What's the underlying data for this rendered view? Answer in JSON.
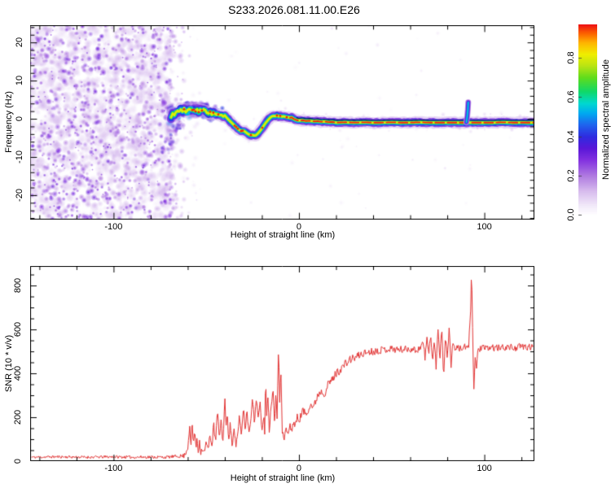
{
  "title": "S233.2026.081.11.00.E26",
  "colors": {
    "background": "#ffffff",
    "axis": "#000000",
    "snr_line": "#e23333",
    "ridge_overlay_line": "#0a0a3c"
  },
  "chart_data": [
    {
      "type": "heatmap",
      "title": "S233.2026.081.11.00.E26",
      "xlabel": "Height of straight line (km)",
      "ylabel": "Frequency (Hz)",
      "xlim": [
        -145,
        127
      ],
      "ylim": [
        -26.4,
        24.5
      ],
      "x_major_ticks": [
        -100,
        0,
        100
      ],
      "x_tick_labels": [
        "-100",
        "0",
        "100"
      ],
      "x_minor_step": 20,
      "y_major_ticks": [
        20,
        10,
        0,
        -10,
        -20
      ],
      "y_tick_labels": [
        "20",
        "10",
        "0",
        "-10",
        "-20"
      ],
      "y_minor_step": 2,
      "grid": false,
      "colorbar": {
        "label": "Normalized spectral amplitude",
        "tick_values": [
          0,
          0.2,
          0.4,
          0.6,
          0.8
        ],
        "tick_labels": [
          "0.0",
          "0.2",
          "0.4",
          "0.6",
          "0.8"
        ],
        "range": [
          0,
          0.975
        ],
        "stops": [
          [
            0.0,
            "#ffffff"
          ],
          [
            0.05,
            "#f1e8f9"
          ],
          [
            0.12,
            "#d8bdee"
          ],
          [
            0.2,
            "#b07ae0"
          ],
          [
            0.28,
            "#8332e0"
          ],
          [
            0.34,
            "#5a17d8"
          ],
          [
            0.4,
            "#2f2be0"
          ],
          [
            0.46,
            "#1f63ee"
          ],
          [
            0.52,
            "#00aaf0"
          ],
          [
            0.57,
            "#00d8d0"
          ],
          [
            0.63,
            "#10d868"
          ],
          [
            0.7,
            "#5fdc1c"
          ],
          [
            0.76,
            "#b8e414"
          ],
          [
            0.82,
            "#f0ee00"
          ],
          [
            0.88,
            "#ffb300"
          ],
          [
            0.93,
            "#fb5c00"
          ],
          [
            0.97,
            "#ef1414"
          ],
          [
            1.0,
            "#e00045"
          ]
        ]
      },
      "noise_region": {
        "x_start_km": -145,
        "x_end_km": -70,
        "sparse_tail_end_km": -51,
        "amplitude_range": [
          0.03,
          0.32
        ],
        "seed": 7,
        "blob_count_base": 1600,
        "blob_count_dark": 760,
        "tail_count": 160,
        "scatter_count": 55
      },
      "ridge_peak_amplitude": 0.96,
      "ridge_trace_km_hz": [
        [
          -69,
          0.3
        ],
        [
          -68,
          1.6
        ],
        [
          -67,
          0.8
        ],
        [
          -66,
          2.3
        ],
        [
          -65,
          1.5
        ],
        [
          -64,
          2.6
        ],
        [
          -63,
          1.8
        ],
        [
          -62,
          2.5
        ],
        [
          -61,
          1.6
        ],
        [
          -60,
          2.2
        ],
        [
          -59,
          2.8
        ],
        [
          -58,
          2.0
        ],
        [
          -57,
          2.6
        ],
        [
          -56,
          1.8
        ],
        [
          -55,
          2.4
        ],
        [
          -54,
          1.7
        ],
        [
          -53,
          2.5
        ],
        [
          -52,
          2.0
        ],
        [
          -51,
          2.6
        ],
        [
          -50,
          1.8
        ],
        [
          -49,
          1.2
        ],
        [
          -48,
          1.9
        ],
        [
          -47,
          1.1
        ],
        [
          -46,
          1.7
        ],
        [
          -45,
          1.0
        ],
        [
          -44,
          1.5
        ],
        [
          -43,
          0.8
        ],
        [
          -42,
          1.2
        ],
        [
          -41,
          0.5
        ],
        [
          -40,
          0.9
        ],
        [
          -39,
          0.3
        ],
        [
          -38,
          -0.2
        ],
        [
          -37,
          -0.7
        ],
        [
          -36,
          -1.2
        ],
        [
          -35,
          -1.7
        ],
        [
          -34,
          -2.1
        ],
        [
          -33,
          -2.6
        ],
        [
          -32,
          -3.0
        ],
        [
          -31,
          -3.3
        ],
        [
          -30,
          -3.0
        ],
        [
          -29,
          -3.4
        ],
        [
          -28,
          -3.8
        ],
        [
          -27,
          -4.1
        ],
        [
          -26,
          -4.3
        ],
        [
          -25,
          -4.2
        ],
        [
          -24,
          -4.4
        ],
        [
          -23,
          -4.3
        ],
        [
          -22,
          -3.8
        ],
        [
          -21,
          -3.2
        ],
        [
          -20,
          -2.5
        ],
        [
          -19,
          -1.8
        ],
        [
          -18,
          -1.1
        ],
        [
          -17,
          -0.5
        ],
        [
          -16,
          0.1
        ],
        [
          -15,
          0.5
        ],
        [
          -14,
          0.8
        ],
        [
          -13,
          0.6
        ],
        [
          -12,
          0.9
        ],
        [
          -11,
          0.6
        ],
        [
          -10,
          0.8
        ],
        [
          -9,
          0.5
        ],
        [
          -8,
          0.7
        ],
        [
          -7,
          0.3
        ],
        [
          -6,
          0.5
        ],
        [
          -5,
          0.2
        ],
        [
          -4,
          0.4
        ],
        [
          -3,
          0.0
        ],
        [
          -2,
          -0.2
        ],
        [
          -1,
          -0.4
        ],
        [
          0,
          -0.5
        ],
        [
          2,
          -0.4
        ],
        [
          4,
          -0.6
        ],
        [
          6,
          -0.5
        ],
        [
          8,
          -0.7
        ],
        [
          10,
          -0.6
        ],
        [
          12,
          -0.8
        ],
        [
          14,
          -0.7
        ],
        [
          16,
          -0.9
        ],
        [
          18,
          -0.8
        ],
        [
          20,
          -1.0
        ],
        [
          25,
          -0.9
        ],
        [
          30,
          -1.0
        ],
        [
          35,
          -0.9
        ],
        [
          40,
          -1.0
        ],
        [
          45,
          -1.0
        ],
        [
          50,
          -0.9
        ],
        [
          55,
          -1.0
        ],
        [
          60,
          -1.0
        ],
        [
          65,
          -0.9
        ],
        [
          70,
          -1.0
        ],
        [
          75,
          -1.0
        ],
        [
          80,
          -1.0
        ],
        [
          85,
          -1.0
        ],
        [
          90,
          -1.0
        ],
        [
          95,
          -1.0
        ],
        [
          100,
          -1.0
        ],
        [
          105,
          -1.0
        ],
        [
          110,
          -0.9
        ],
        [
          115,
          -1.0
        ],
        [
          120,
          -1.0
        ],
        [
          127,
          -1.0
        ]
      ],
      "hook_segment_km_hz": [
        [
          -72,
          -8.0
        ],
        [
          -70,
          -6.0
        ],
        [
          -68,
          -4.0
        ],
        [
          -66,
          -2.5
        ],
        [
          -64,
          -1.5
        ]
      ],
      "blip": {
        "trace_km_hz": [
          [
            90.3,
            -0.9
          ],
          [
            90.8,
            0.8
          ],
          [
            91.1,
            2.5
          ],
          [
            91.3,
            4.3
          ]
        ],
        "amplitude": 0.55
      }
    },
    {
      "type": "line",
      "xlabel": "Height of straight line (km)",
      "ylabel": "SNR (10 * v/v)",
      "xlim": [
        -145,
        127
      ],
      "ylim": [
        0,
        889
      ],
      "x_major_ticks": [
        -100,
        0,
        100
      ],
      "x_tick_labels": [
        "-100",
        "0",
        "100"
      ],
      "x_minor_step": 20,
      "y_major_ticks": [
        0,
        200,
        400,
        600,
        800
      ],
      "y_tick_labels": [
        "0",
        "200",
        "400",
        "600",
        "800"
      ],
      "y_minor_step": 50,
      "grid": false,
      "series": [
        {
          "name": "SNR",
          "color": "#e23333",
          "noise_seed": 11,
          "keypoints_km_value": [
            [
              -145,
              18
            ],
            [
              -130,
              20
            ],
            [
              -115,
              18
            ],
            [
              -100,
              20
            ],
            [
              -90,
              18
            ],
            [
              -80,
              19
            ],
            [
              -72,
              18
            ],
            [
              -66,
              22
            ],
            [
              -62,
              24
            ],
            [
              -60,
              60
            ],
            [
              -59,
              160
            ],
            [
              -58.3,
              60
            ],
            [
              -57.6,
              185
            ],
            [
              -57,
              70
            ],
            [
              -56.3,
              150
            ],
            [
              -55.6,
              50
            ],
            [
              -55,
              110
            ],
            [
              -54.3,
              45
            ],
            [
              -53.6,
              95
            ],
            [
              -53,
              40
            ],
            [
              -52,
              60
            ],
            [
              -51,
              35
            ],
            [
              -50,
              90
            ],
            [
              -49,
              45
            ],
            [
              -48,
              130
            ],
            [
              -47,
              60
            ],
            [
              -46,
              170
            ],
            [
              -45,
              80
            ],
            [
              -44,
              230
            ],
            [
              -43,
              110
            ],
            [
              -42,
              185
            ],
            [
              -41,
              85
            ],
            [
              -40,
              290
            ],
            [
              -39.3,
              140
            ],
            [
              -38.6,
              230
            ],
            [
              -38,
              100
            ],
            [
              -37,
              170
            ],
            [
              -36,
              70
            ],
            [
              -35,
              140
            ],
            [
              -34,
              60
            ],
            [
              -33,
              130
            ],
            [
              -32,
              210
            ],
            [
              -31,
              110
            ],
            [
              -30,
              250
            ],
            [
              -29,
              150
            ],
            [
              -28,
              230
            ],
            [
              -27,
              130
            ],
            [
              -26,
              200
            ],
            [
              -25,
              280
            ],
            [
              -24,
              170
            ],
            [
              -23,
              300
            ],
            [
              -22,
              190
            ],
            [
              -21,
              260
            ],
            [
              -20,
              150
            ],
            [
              -19,
              210
            ],
            [
              -18.4,
              120
            ],
            [
              -18,
              430
            ],
            [
              -17.4,
              180
            ],
            [
              -16.8,
              320
            ],
            [
              -16,
              140
            ],
            [
              -15,
              250
            ],
            [
              -14,
              350
            ],
            [
              -13.2,
              180
            ],
            [
              -12.5,
              290
            ],
            [
              -11.8,
              200
            ],
            [
              -11,
              545
            ],
            [
              -10.4,
              280
            ],
            [
              -9.8,
              420
            ],
            [
              -9,
              130
            ],
            [
              -8,
              100
            ],
            [
              -7,
              150
            ],
            [
              -6,
              120
            ],
            [
              -5,
              160
            ],
            [
              -4,
              140
            ],
            [
              -3,
              180
            ],
            [
              -2,
              160
            ],
            [
              -1,
              200
            ],
            [
              0,
              185
            ],
            [
              2,
              230
            ],
            [
              4,
              215
            ],
            [
              6,
              260
            ],
            [
              8,
              245
            ],
            [
              10,
              300
            ],
            [
              12,
              320
            ],
            [
              14,
              310
            ],
            [
              16,
              355
            ],
            [
              18,
              370
            ],
            [
              20,
              400
            ],
            [
              22,
              415
            ],
            [
              24,
              435
            ],
            [
              26,
              450
            ],
            [
              28,
              465
            ],
            [
              30,
              470
            ],
            [
              33,
              485
            ],
            [
              36,
              495
            ],
            [
              40,
              500
            ],
            [
              45,
              508
            ],
            [
              50,
              512
            ],
            [
              55,
              508
            ],
            [
              60,
              512
            ],
            [
              64,
              505
            ],
            [
              67,
              540
            ],
            [
              68,
              470
            ],
            [
              69,
              560
            ],
            [
              70,
              480
            ],
            [
              71,
              590
            ],
            [
              72,
              450
            ],
            [
              73,
              545
            ],
            [
              74,
              430
            ],
            [
              75,
              600
            ],
            [
              76,
              470
            ],
            [
              77,
              620
            ],
            [
              78,
              390
            ],
            [
              79,
              560
            ],
            [
              80,
              480
            ],
            [
              81,
              605
            ],
            [
              82,
              430
            ],
            [
              83,
              555
            ],
            [
              84,
              500
            ],
            [
              85,
              525
            ],
            [
              86,
              510
            ],
            [
              88,
              515
            ],
            [
              90,
              520
            ],
            [
              91.5,
              510
            ],
            [
              92.6,
              700
            ],
            [
              93.1,
              860
            ],
            [
              93.7,
              600
            ],
            [
              94.3,
              330
            ],
            [
              95,
              470
            ],
            [
              95.7,
              420
            ],
            [
              96.5,
              505
            ],
            [
              98,
              515
            ],
            [
              101,
              512
            ],
            [
              104,
              518
            ],
            [
              108,
              514
            ],
            [
              112,
              520
            ],
            [
              116,
              516
            ],
            [
              120,
              522
            ],
            [
              124,
              518
            ],
            [
              127,
              520
            ]
          ],
          "noise_amp_keypoints": [
            [
              -145,
              6
            ],
            [
              -65,
              7
            ],
            [
              -60,
              14
            ],
            [
              -30,
              18
            ],
            [
              -10,
              16
            ],
            [
              0,
              18
            ],
            [
              20,
              20
            ],
            [
              40,
              17
            ],
            [
              127,
              16
            ]
          ]
        }
      ]
    }
  ]
}
